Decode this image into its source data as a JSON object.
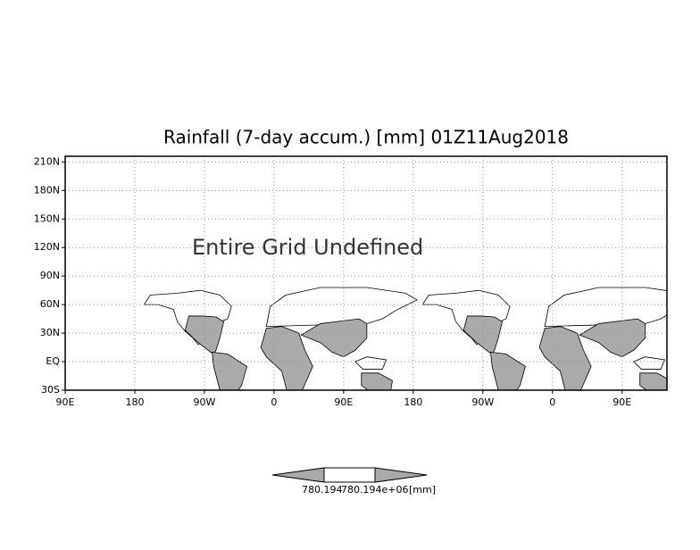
{
  "chart_data": {
    "type": "map",
    "title": "Rainfall (7-day accum.) [mm] 01Z11Aug2018",
    "annotation": "Entire Grid Undefined",
    "xlim": [
      90,
      868
    ],
    "ylim": [
      -30,
      216
    ],
    "xticks": [
      {
        "value": 90,
        "label": "90E"
      },
      {
        "value": 180,
        "label": "180"
      },
      {
        "value": 270,
        "label": "90W"
      },
      {
        "value": 360,
        "label": "0"
      },
      {
        "value": 450,
        "label": "90E"
      },
      {
        "value": 540,
        "label": "180"
      },
      {
        "value": 630,
        "label": "90W"
      },
      {
        "value": 720,
        "label": "0"
      },
      {
        "value": 810,
        "label": "90E"
      }
    ],
    "yticks": [
      {
        "value": -30,
        "label": "30S"
      },
      {
        "value": 0,
        "label": "EQ"
      },
      {
        "value": 30,
        "label": "30N"
      },
      {
        "value": 60,
        "label": "60N"
      },
      {
        "value": 90,
        "label": "90N"
      },
      {
        "value": 120,
        "label": "120N"
      },
      {
        "value": 150,
        "label": "150N"
      },
      {
        "value": 180,
        "label": "180N"
      },
      {
        "value": 210,
        "label": "210N"
      }
    ],
    "grid": true,
    "colorbar": {
      "labels": [
        "780.194",
        "780.194e+06",
        "[mm]"
      ]
    }
  }
}
